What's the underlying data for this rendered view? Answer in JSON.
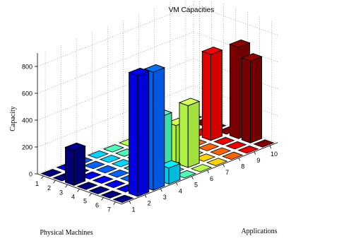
{
  "chart_data": {
    "type": "bar3d",
    "title": "VM Capacities",
    "xlabel": "Physical Machines",
    "ylabel": "Applications",
    "zlabel": "Capacity",
    "x_ticks": [
      "1",
      "2",
      "3",
      "4",
      "5",
      "6",
      "7"
    ],
    "y_ticks": [
      "1",
      "2",
      "3",
      "4",
      "5",
      "6",
      "7",
      "8",
      "9",
      "10"
    ],
    "z_ticks": [
      "0",
      "200",
      "400",
      "600",
      "800"
    ],
    "zlim": [
      0,
      900
    ],
    "grid": true,
    "colormap": "jet (color by application column)",
    "bars": [
      {
        "pm": 3,
        "app": 1,
        "value": 260
      },
      {
        "pm": 7,
        "app": 2,
        "value": 900
      },
      {
        "pm": 7,
        "app": 3,
        "value": 880
      },
      {
        "pm": 7,
        "app": 4,
        "value": 120
      },
      {
        "pm": 5,
        "app": 5,
        "value": 390
      },
      {
        "pm": 5,
        "app": 6,
        "value": 280
      },
      {
        "pm": 6,
        "app": 6,
        "value": 460
      },
      {
        "pm": 4,
        "app": 9,
        "value": 640
      },
      {
        "pm": 5,
        "app": 10,
        "value": 680
      },
      {
        "pm": 6,
        "app": 10,
        "value": 610
      }
    ]
  }
}
